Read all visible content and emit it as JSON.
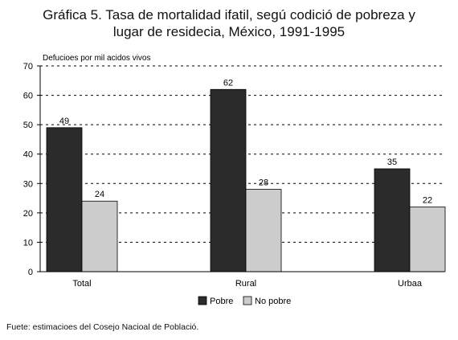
{
  "title_line1": "Gráfica 5. Tasa de mortalidad ifatil, segú codició de pobreza y",
  "title_line2": "lugar de residecia, México, 1991-1995",
  "source": "Fuete: estimacioes del Cosejo Nacioal de Població.",
  "colors": {
    "pobre": "#2b2b2b",
    "no_pobre": "#cccccc",
    "axis": "#000000",
    "grid": "#000000"
  },
  "chart_data": {
    "type": "bar",
    "ylabel": "Defucioes por mil acidos vivos",
    "xlabel": "",
    "ylim": [
      0,
      70
    ],
    "yticks": [
      0,
      10,
      20,
      30,
      40,
      50,
      60,
      70
    ],
    "categories": [
      "Total",
      "Rural",
      "Urbaa"
    ],
    "series": [
      {
        "name": "Pobre",
        "values": [
          49,
          62,
          35
        ]
      },
      {
        "name": "No pobre",
        "values": [
          24,
          28,
          22
        ]
      }
    ],
    "data_labels": true,
    "grid": "horizontal dotted",
    "legend": "bottom-center"
  }
}
